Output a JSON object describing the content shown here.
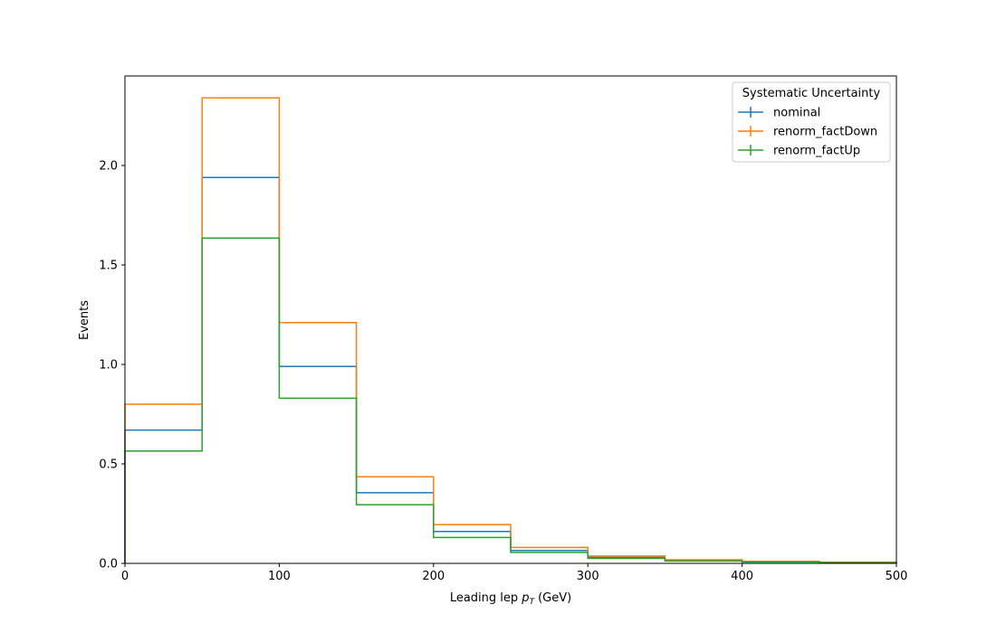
{
  "chart_data": {
    "type": "step",
    "title": "",
    "xlabel": "Leading lep",
    "xlabel_symbol": "p",
    "xlabel_subscript": "T",
    "xlabel_unit": "(GeV)",
    "ylabel": "Events",
    "xlim": [
      0,
      500
    ],
    "ylim": [
      0,
      2.45
    ],
    "xticks": [
      0,
      100,
      200,
      300,
      400,
      500
    ],
    "xtick_labels": [
      "0",
      "100",
      "200",
      "300",
      "400",
      "500"
    ],
    "yticks": [
      0,
      0.5,
      1.0,
      1.5,
      2.0
    ],
    "ytick_labels": [
      "0.0",
      "0.5",
      "1.0",
      "1.5",
      "2.0"
    ],
    "grid": false,
    "legend": {
      "title": "Systematic Uncertainty",
      "position": "top-right"
    },
    "bin_edges": [
      0,
      50,
      100,
      150,
      200,
      250,
      300,
      350,
      400,
      450,
      500
    ],
    "series": [
      {
        "name": "nominal",
        "color": "#1f77b4",
        "values": [
          0.67,
          1.94,
          0.99,
          0.355,
          0.16,
          0.065,
          0.03,
          0.015,
          0.008,
          0.005
        ]
      },
      {
        "name": "renorm_factDown",
        "color": "#ff7f0e",
        "values": [
          0.8,
          2.34,
          1.21,
          0.435,
          0.195,
          0.08,
          0.037,
          0.018,
          0.01,
          0.006
        ]
      },
      {
        "name": "renorm_factUp",
        "color": "#2ca02c",
        "values": [
          0.565,
          1.635,
          0.83,
          0.295,
          0.13,
          0.055,
          0.025,
          0.012,
          0.007,
          0.004
        ]
      }
    ]
  }
}
